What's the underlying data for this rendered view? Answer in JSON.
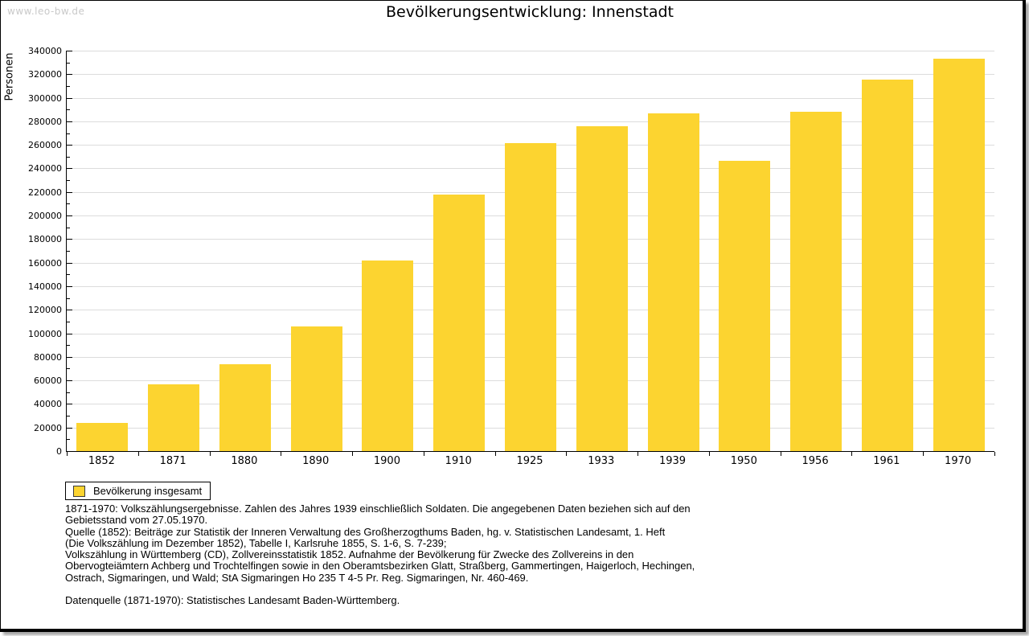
{
  "page": {
    "watermark": "www.leo-bw.de"
  },
  "chart_data": {
    "type": "bar",
    "title": "Bevölkerungsentwicklung: Innenstadt",
    "xlabel": "",
    "ylabel": "Personen",
    "categories": [
      "1852",
      "1871",
      "1880",
      "1890",
      "1900",
      "1910",
      "1925",
      "1933",
      "1939",
      "1950",
      "1956",
      "1961",
      "1970"
    ],
    "series": [
      {
        "name": "Bevölkerung insgesamt",
        "values": [
          24000,
          56500,
          74000,
          105500,
          161500,
          218000,
          261500,
          276000,
          286500,
          246500,
          288000,
          315500,
          333500
        ]
      }
    ],
    "ylim": [
      0,
      340000
    ],
    "ytick_step": 20000,
    "ytick_values": [
      0,
      20000,
      40000,
      60000,
      80000,
      100000,
      120000,
      140000,
      160000,
      180000,
      200000,
      220000,
      240000,
      260000,
      280000,
      300000,
      320000,
      340000
    ],
    "minor_tick_step": 10000,
    "grid": "horizontal-major",
    "bar_color": "#fcd430",
    "legend_position": "bottom-left"
  },
  "legend": {
    "label": "Bevölkerung insgesamt"
  },
  "footnotes": [
    "1871-1970: Volkszählungsergebnisse. Zahlen des Jahres 1939 einschließlich Soldaten. Die angegebenen Daten beziehen sich auf den",
    "Gebietsstand vom 27.05.1970.",
    "Quelle (1852): Beiträge zur Statistik der Inneren Verwaltung des Großherzogthums Baden, hg. v. Statistischen Landesamt, 1. Heft",
    "(Die Volkszählung im Dezember 1852), Tabelle I, Karlsruhe 1855, S. 1-6, S. 7-239;",
    "Volkszählung in Württemberg (CD), Zollvereinsstatistik 1852. Aufnahme der Bevölkerung für Zwecke des Zollvereins in den",
    "Obervogteiämtern Achberg und Trochtelfingen sowie in den Oberamtsbezirken Glatt, Straßberg, Gammertingen, Haigerloch, Hechingen,",
    "Ostrach, Sigmaringen, und Wald; StA Sigmaringen Ho 235 T 4-5 Pr. Reg. Sigmaringen, Nr. 460-469.",
    "",
    "Datenquelle (1871-1970): Statistisches Landesamt Baden-Württemberg."
  ]
}
